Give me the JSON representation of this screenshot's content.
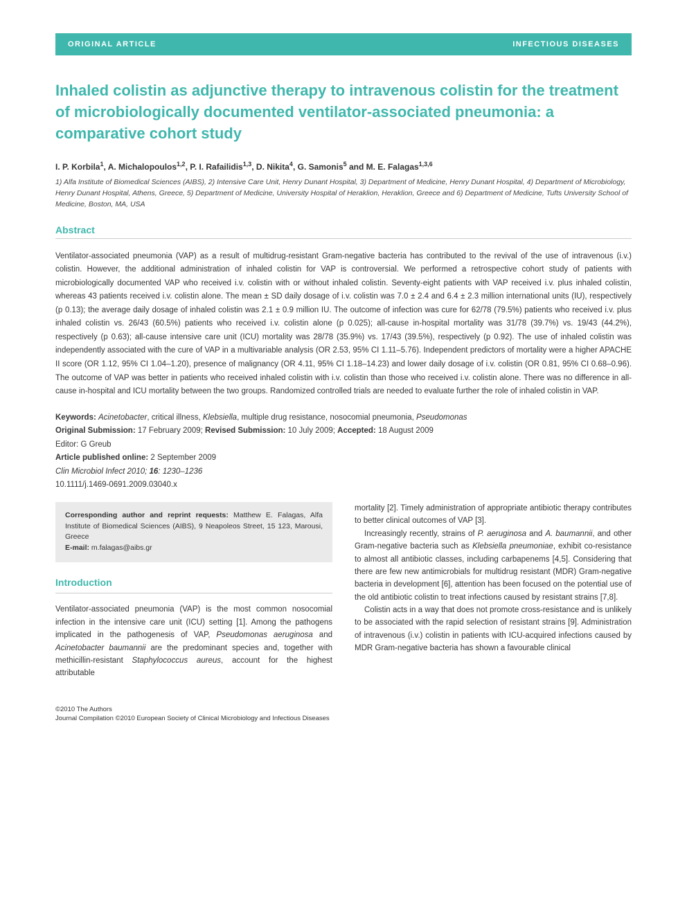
{
  "banner": {
    "left": "ORIGINAL ARTICLE",
    "right": "INFECTIOUS DISEASES",
    "bg_color": "#3fb7ad",
    "text_color": "#ffffff"
  },
  "title": "Inhaled colistin as adjunctive therapy to intravenous colistin for the treatment of microbiologically documented ventilator-associated pneumonia: a comparative cohort study",
  "authors_html": "I. P. Korbila<sup>1</sup>, A. Michalopoulos<sup>1,2</sup>, P. I. Rafailidis<sup>1,3</sup>, D. Nikita<sup>4</sup>, G. Samonis<sup>5</sup> and M. E. Falagas<sup>1,3,6</sup>",
  "affiliations": "1) Alfa Institute of Biomedical Sciences (AIBS), 2) Intensive Care Unit, Henry Dunant Hospital, 3) Department of Medicine, Henry Dunant Hospital, 4) Department of Microbiology, Henry Dunant Hospital, Athens, Greece, 5) Department of Medicine, University Hospital of Heraklion, Heraklion, Greece and 6) Department of Medicine, Tufts University School of Medicine, Boston, MA, USA",
  "abstract_heading": "Abstract",
  "abstract": "Ventilator-associated pneumonia (VAP) as a result of multidrug-resistant Gram-negative bacteria has contributed to the revival of the use of intravenous (i.v.) colistin. However, the additional administration of inhaled colistin for VAP is controversial. We performed a retrospective cohort study of patients with microbiologically documented VAP who received i.v. colistin with or without inhaled colistin. Seventy-eight patients with VAP received i.v. plus inhaled colistin, whereas 43 patients received i.v. colistin alone. The mean ± SD daily dosage of i.v. colistin was 7.0 ± 2.4 and 6.4 ± 2.3 million international units (IU), respectively (p 0.13); the average daily dosage of inhaled colistin was 2.1 ± 0.9 million IU. The outcome of infection was cure for 62/78 (79.5%) patients who received i.v. plus inhaled colistin vs. 26/43 (60.5%) patients who received i.v. colistin alone (p 0.025); all-cause in-hospital mortality was 31/78 (39.7%) vs. 19/43 (44.2%), respectively (p 0.63); all-cause intensive care unit (ICU) mortality was 28/78 (35.9%) vs. 17/43 (39.5%), respectively (p 0.92). The use of inhaled colistin was independently associated with the cure of VAP in a multivariable analysis (OR 2.53, 95% CI 1.11–5.76). Independent predictors of mortality were a higher APACHE II score (OR 1.12, 95% CI 1.04–1.20), presence of malignancy (OR 4.11, 95% CI 1.18–14.23) and lower daily dosage of i.v. colistin (OR 0.81, 95% CI 0.68–0.96). The outcome of VAP was better in patients who received inhaled colistin with i.v. colistin than those who received i.v. colistin alone. There was no difference in all-cause in-hospital and ICU mortality between the two groups. Randomized controlled trials are needed to evaluate further the role of inhaled colistin in VAP.",
  "keywords_label": "Keywords:",
  "keywords_html": "<span class=\"ital\">Acinetobacter</span>, critical illness, <span class=\"ital\">Klebsiella</span>, multiple drug resistance, nosocomial pneumonia, <span class=\"ital\">Pseudomonas</span>",
  "submission": {
    "orig_label": "Original Submission:",
    "orig_value": " 17 February 2009; ",
    "rev_label": "Revised Submission:",
    "rev_value": " 10 July 2009; ",
    "acc_label": "Accepted:",
    "acc_value": " 18 August 2009"
  },
  "editor_label": "Editor:",
  "editor_value": " G Greub",
  "pub_online_label": "Article published online:",
  "pub_online_value": " 2 September 2009",
  "journal_html": "<span class=\"ital\">Clin Microbiol Infect</span> 2010; <b>16</b>: 1230–1236",
  "doi": "10.1111/j.1469-0691.2009.03040.x",
  "corr": {
    "label": "Corresponding author and reprint requests:",
    "text": " Matthew E. Falagas, Alfa Institute of Biomedical Sciences (AIBS), 9 Neapoleos Street, 15 123, Marousi, Greece",
    "email_label": "E-mail:",
    "email_value": " m.falagas@aibs.gr"
  },
  "intro_heading": "Introduction",
  "col_left_html": "Ventilator-associated pneumonia (VAP) is the most common nosocomial infection in the intensive care unit (ICU) setting [1]. Among the pathogens implicated in the pathogenesis of VAP, <span class=\"ital\">Pseudomonas aeruginosa</span> and <span class=\"ital\">Acinetobacter baumannii</span> are the predominant species and, together with methicillin-resistant <span class=\"ital\">Staphylococcus aureus</span>, account for the highest attributable",
  "col_right_p1": "mortality [2]. Timely administration of appropriate antibiotic therapy contributes to better clinical outcomes of VAP [3].",
  "col_right_p2_html": "Increasingly recently, strains of <span class=\"ital\">P. aeruginosa</span> and <span class=\"ital\">A. baumannii</span>, and other Gram-negative bacteria such as <span class=\"ital\">Klebsiella pneumoniae</span>, exhibit co-resistance to almost all antibiotic classes, including carbapenems [4,5]. Considering that there are few new antimicrobials for multidrug resistant (MDR) Gram-negative bacteria in development [6], attention has been focused on the potential use of the old antibiotic colistin to treat infections caused by resistant strains [7,8].",
  "col_right_p3": "Colistin acts in a way that does not promote cross-resistance and is unlikely to be associated with the rapid selection of resistant strains [9]. Administration of intravenous (i.v.) colistin in patients with ICU-acquired infections caused by MDR Gram-negative bacteria has shown a favourable clinical",
  "footer": {
    "line1": "©2010 The Authors",
    "line2": "Journal Compilation ©2010 European Society of Clinical Microbiology and Infectious Diseases"
  },
  "colors": {
    "accent": "#3fb7ad",
    "text": "#333333",
    "rule": "#cccccc",
    "box_bg": "#eaeaea"
  },
  "typography": {
    "title_pt": 22,
    "body_pt": 11.5,
    "heading_pt": 14,
    "footer_pt": 9.5
  }
}
